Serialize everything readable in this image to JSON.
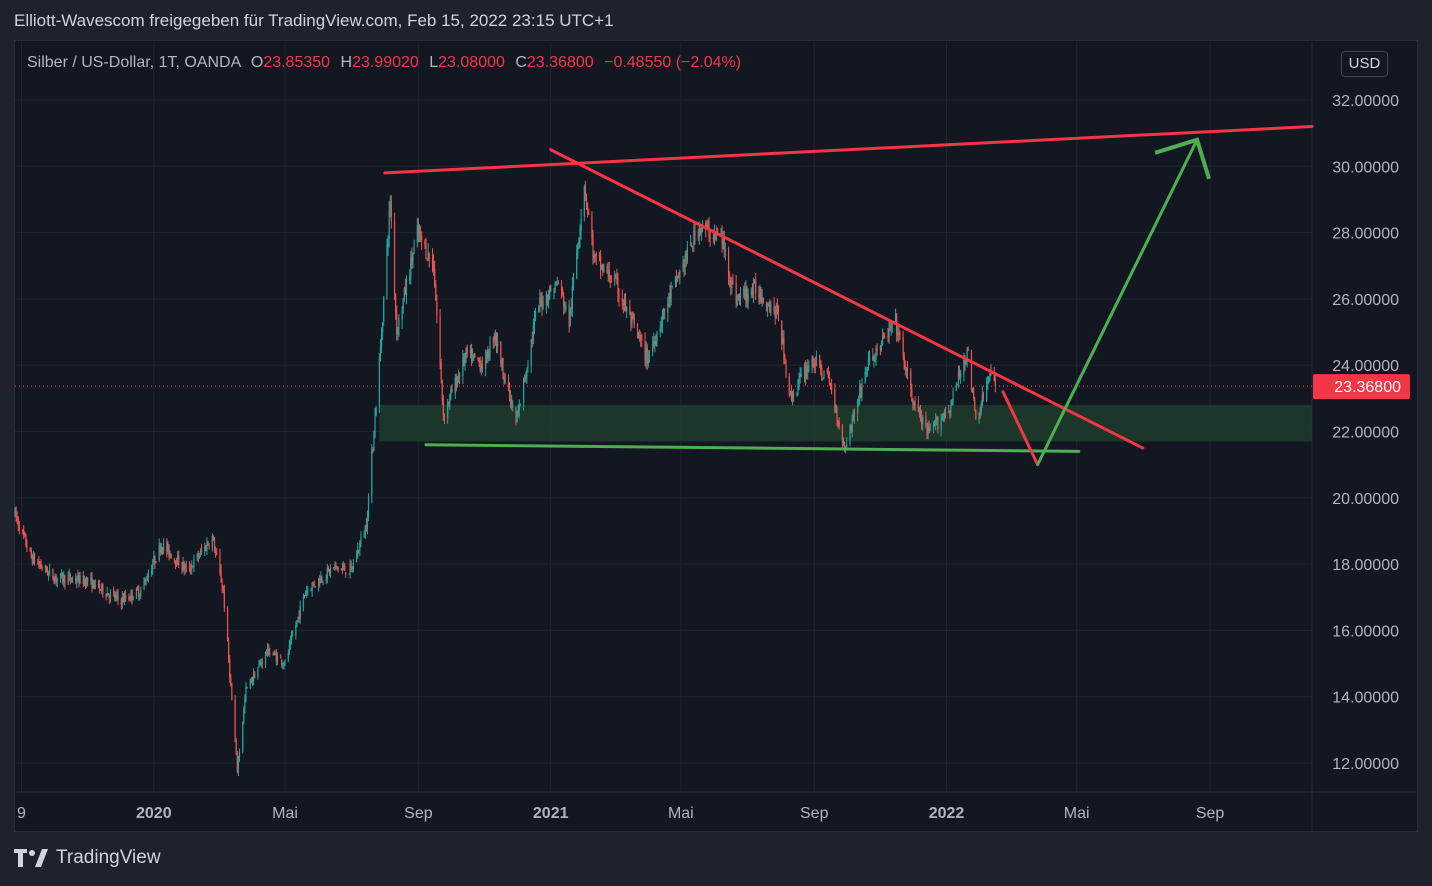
{
  "header": {
    "title": "Elliott-Wavescom freigegeben für TradingView.com, Feb 15, 2022 23:15 UTC+1"
  },
  "legend": {
    "symbol": "Silber / US-Dollar, 1T, OANDA",
    "open_label": "O",
    "open": "23.85350",
    "high_label": "H",
    "high": "23.99020",
    "low_label": "L",
    "low": "23.08000",
    "close_label": "C",
    "close": "23.36800",
    "change": "−0.48550 (−2.04%)"
  },
  "currency_button": "USD",
  "footer": {
    "brand": "TradingView"
  },
  "colors": {
    "up": "#26a69a",
    "down": "#ef5350",
    "resistance": "#f23645",
    "support": "#4caf50",
    "zone": "#1e3d2a",
    "price_label": "#f23645"
  },
  "chart_data": {
    "type": "candlestick",
    "symbol": "XAGUSD",
    "ylim": [
      11.0,
      33.0
    ],
    "yticks": [
      "32.00000",
      "30.00000",
      "28.00000",
      "26.00000",
      "24.00000",
      "22.00000",
      "20.00000",
      "18.00000",
      "16.00000",
      "14.00000",
      "12.00000"
    ],
    "xticks": [
      {
        "label": "9",
        "date": "2019-09-01"
      },
      {
        "label": "2020",
        "date": "2020-01-01"
      },
      {
        "label": "Mai",
        "date": "2020-05-01"
      },
      {
        "label": "Sep",
        "date": "2020-09-01"
      },
      {
        "label": "2021",
        "date": "2021-01-01"
      },
      {
        "label": "Mai",
        "date": "2021-05-01"
      },
      {
        "label": "Sep",
        "date": "2021-09-01"
      },
      {
        "label": "2022",
        "date": "2022-01-01"
      },
      {
        "label": "Mai",
        "date": "2022-05-01"
      },
      {
        "label": "Sep",
        "date": "2022-09-01"
      }
    ],
    "x_range": [
      "2019-08-26",
      "2022-12-04"
    ],
    "last_price": "23.36800",
    "price_path": [
      {
        "date": "2019-08-26",
        "price": 19.5
      },
      {
        "date": "2019-09-10",
        "price": 18.2
      },
      {
        "date": "2019-10-01",
        "price": 17.6
      },
      {
        "date": "2019-11-01",
        "price": 17.5
      },
      {
        "date": "2019-12-01",
        "price": 16.9
      },
      {
        "date": "2019-12-20",
        "price": 17.2
      },
      {
        "date": "2020-01-08",
        "price": 18.6
      },
      {
        "date": "2020-02-01",
        "price": 17.8
      },
      {
        "date": "2020-02-24",
        "price": 18.8
      },
      {
        "date": "2020-03-05",
        "price": 17.2
      },
      {
        "date": "2020-03-18",
        "price": 11.8
      },
      {
        "date": "2020-03-26",
        "price": 14.2
      },
      {
        "date": "2020-04-15",
        "price": 15.4
      },
      {
        "date": "2020-05-01",
        "price": 15.0
      },
      {
        "date": "2020-05-20",
        "price": 17.2
      },
      {
        "date": "2020-06-15",
        "price": 17.9
      },
      {
        "date": "2020-07-01",
        "price": 17.8
      },
      {
        "date": "2020-07-15",
        "price": 19.2
      },
      {
        "date": "2020-07-28",
        "price": 24.5
      },
      {
        "date": "2020-08-06",
        "price": 29.0
      },
      {
        "date": "2020-08-12",
        "price": 25.0
      },
      {
        "date": "2020-08-31",
        "price": 28.0
      },
      {
        "date": "2020-09-15",
        "price": 27.0
      },
      {
        "date": "2020-09-24",
        "price": 22.5
      },
      {
        "date": "2020-10-15",
        "price": 24.3
      },
      {
        "date": "2020-11-01",
        "price": 24.0
      },
      {
        "date": "2020-11-10",
        "price": 25.0
      },
      {
        "date": "2020-11-30",
        "price": 22.2
      },
      {
        "date": "2020-12-20",
        "price": 25.8
      },
      {
        "date": "2021-01-08",
        "price": 26.5
      },
      {
        "date": "2021-01-18",
        "price": 25.3
      },
      {
        "date": "2021-02-01",
        "price": 29.5
      },
      {
        "date": "2021-02-10",
        "price": 27.2
      },
      {
        "date": "2021-03-01",
        "price": 26.5
      },
      {
        "date": "2021-03-31",
        "price": 24.2
      },
      {
        "date": "2021-04-20",
        "price": 26.0
      },
      {
        "date": "2021-05-18",
        "price": 28.2
      },
      {
        "date": "2021-06-08",
        "price": 27.8
      },
      {
        "date": "2021-06-20",
        "price": 26.0
      },
      {
        "date": "2021-07-10",
        "price": 26.3
      },
      {
        "date": "2021-07-30",
        "price": 25.5
      },
      {
        "date": "2021-08-10",
        "price": 23.0
      },
      {
        "date": "2021-08-30",
        "price": 24.2
      },
      {
        "date": "2021-09-15",
        "price": 23.5
      },
      {
        "date": "2021-09-29",
        "price": 21.5
      },
      {
        "date": "2021-10-20",
        "price": 24.0
      },
      {
        "date": "2021-11-15",
        "price": 25.3
      },
      {
        "date": "2021-11-30",
        "price": 23.0
      },
      {
        "date": "2021-12-15",
        "price": 21.9
      },
      {
        "date": "2022-01-05",
        "price": 22.8
      },
      {
        "date": "2022-01-20",
        "price": 24.5
      },
      {
        "date": "2022-01-28",
        "price": 22.3
      },
      {
        "date": "2022-02-10",
        "price": 23.7
      },
      {
        "date": "2022-02-15",
        "price": 23.37
      }
    ],
    "drawings": [
      {
        "name": "upper-resistance-line",
        "color": "resistance",
        "from": {
          "date": "2020-08-01",
          "price": 29.8
        },
        "to": {
          "date": "2022-12-04",
          "price": 31.2
        }
      },
      {
        "name": "descending-trendline",
        "color": "resistance",
        "from": {
          "date": "2021-01-01",
          "price": 30.5
        },
        "to": {
          "date": "2022-07-01",
          "price": 21.5
        }
      },
      {
        "name": "support-line",
        "color": "support",
        "from": {
          "date": "2020-09-08",
          "price": 21.6
        },
        "to": {
          "date": "2022-05-03",
          "price": 21.4
        }
      },
      {
        "name": "projection-down",
        "color": "resistance",
        "from": {
          "date": "2022-02-22",
          "price": 23.2
        },
        "to": {
          "date": "2022-03-26",
          "price": 21.0
        }
      },
      {
        "name": "projection-up",
        "color": "support",
        "from": {
          "date": "2022-03-26",
          "price": 21.0
        },
        "to": {
          "date": "2022-08-20",
          "price": 30.8
        }
      }
    ],
    "zone": {
      "from": "2020-07-27",
      "to": "2022-12-04",
      "low": 21.7,
      "high": 22.8
    },
    "arrowhead": {
      "tip": {
        "date": "2022-08-20",
        "price": 30.8
      }
    }
  }
}
